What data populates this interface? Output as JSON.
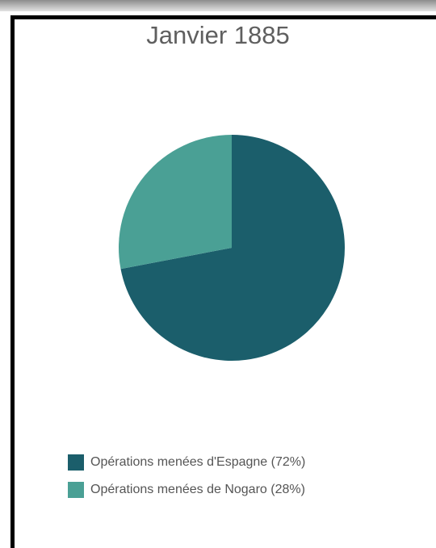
{
  "chart_data": {
    "type": "pie",
    "title": "Janvier 1885",
    "series": [
      {
        "name": "Opérations menées d'Espagne (72%)",
        "value": 72,
        "color": "#1b5e6b"
      },
      {
        "name": "Opérations menées de Nogaro (28%)",
        "value": 28,
        "color": "#4aa095"
      }
    ],
    "legend_position": "bottom-left"
  },
  "legend": {
    "items": [
      {
        "label": "Opérations menées d'Espagne (72%)"
      },
      {
        "label": "Opérations menées de Nogaro (28%)"
      }
    ]
  }
}
